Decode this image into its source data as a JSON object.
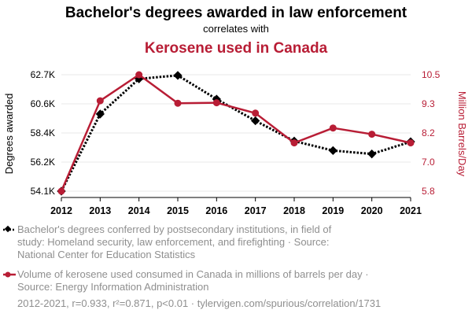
{
  "chart_data": {
    "type": "line",
    "title": "Bachelor's degrees awarded in law enforcement",
    "subtitle": "correlates with",
    "title2": "Kerosene used in Canada",
    "x": [
      "2012",
      "2013",
      "2014",
      "2015",
      "2016",
      "2017",
      "2018",
      "2019",
      "2020",
      "2021"
    ],
    "left_axis": {
      "label": "Degrees awarded",
      "ticks": [
        "54.1K",
        "56.2K",
        "58.4K",
        "60.6K",
        "62.7K"
      ],
      "tick_values": [
        54100,
        56250,
        58400,
        60550,
        62700
      ],
      "range": [
        54100,
        62700
      ]
    },
    "right_axis": {
      "label": "Million Barrels/Day",
      "ticks": [
        "5.8",
        "7.0",
        "8.2",
        "9.3",
        "10.5"
      ],
      "tick_values": [
        5.8,
        6.975,
        8.15,
        9.325,
        10.5
      ],
      "range": [
        5.8,
        10.5
      ]
    },
    "series": [
      {
        "name": "Bachelor's degrees conferred by postsecondary institutions, in field of study: Homeland security, law enforcement, and firefighting · Source: National Center for Education Statistics",
        "axis": "left",
        "color": "#000000",
        "marker": "diamond",
        "dash": "dotted",
        "values": [
          54100,
          59800,
          62400,
          62650,
          60900,
          59300,
          57800,
          57100,
          56850,
          57750
        ]
      },
      {
        "name": "Volume of kerosene used consumed in Canada in millions of barrels per day · Source: Energy Information Administration",
        "axis": "right",
        "color": "#b81d35",
        "marker": "circle",
        "dash": "solid",
        "values": [
          5.8,
          9.45,
          10.5,
          9.35,
          9.37,
          8.95,
          7.75,
          8.35,
          8.1,
          7.75
        ]
      }
    ]
  },
  "legend": {
    "line1": "Bachelor's degrees conferred by postsecondary institutions, in field of",
    "line2": "study: Homeland security, law enforcement, and firefighting · Source:",
    "line3": "National Center for Education Statistics",
    "line4": "Volume of kerosene used consumed in Canada in millions of barrels per day ·",
    "line5": "Source: Energy Information Administration"
  },
  "footer": "2012-2021, r=0.933, r²=0.871, p<0.01 · tylervigen.com/spurious/correlation/1731"
}
